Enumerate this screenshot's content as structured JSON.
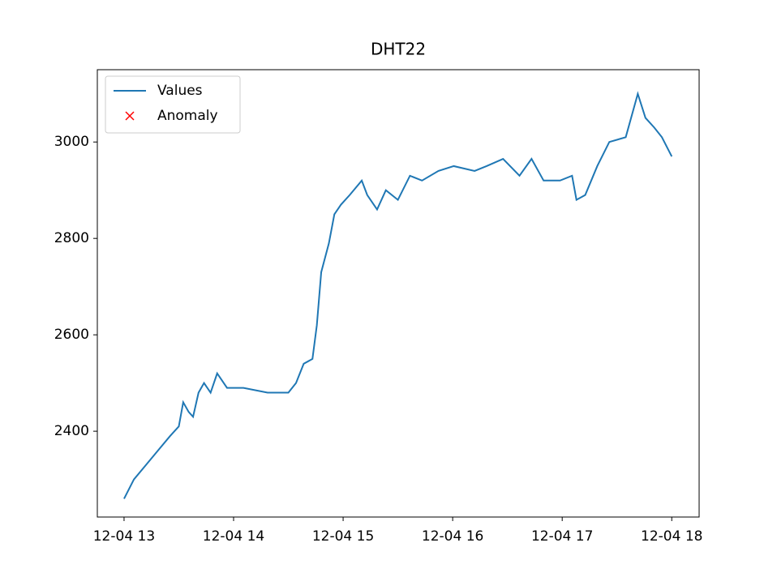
{
  "chart_data": {
    "type": "line",
    "title": "DHT22",
    "x": [
      13.0,
      13.09,
      13.2,
      13.31,
      13.42,
      13.5,
      13.54,
      13.59,
      13.63,
      13.68,
      13.73,
      13.79,
      13.85,
      13.94,
      14.09,
      14.31,
      14.5,
      14.57,
      14.64,
      14.72,
      14.76,
      14.8,
      14.87,
      14.92,
      14.98,
      15.06,
      15.17,
      15.22,
      15.31,
      15.39,
      15.5,
      15.61,
      15.72,
      15.87,
      16.01,
      16.2,
      16.31,
      16.46,
      16.61,
      16.72,
      16.83,
      16.98,
      17.09,
      17.13,
      17.21,
      17.32,
      17.43,
      17.58,
      17.69,
      17.76,
      17.84,
      17.91,
      18.0
    ],
    "series": [
      {
        "name": "Values",
        "color": "#1f77b4",
        "values": [
          2260,
          2300,
          2330,
          2360,
          2390,
          2410,
          2460,
          2440,
          2430,
          2480,
          2500,
          2480,
          2520,
          2490,
          2490,
          2480,
          2480,
          2500,
          2540,
          2550,
          2620,
          2730,
          2790,
          2850,
          2870,
          2890,
          2920,
          2890,
          2860,
          2900,
          2880,
          2930,
          2920,
          2940,
          2950,
          2940,
          2950,
          2965,
          2930,
          2965,
          2920,
          2920,
          2930,
          2880,
          2890,
          2950,
          3000,
          3010,
          3100,
          3050,
          3030,
          3010,
          2970
        ]
      }
    ],
    "anomaly": {
      "name": "Anomaly",
      "color": "#ff0000",
      "marker": "x",
      "x": [],
      "values": []
    },
    "xlim": [
      12.756,
      18.25
    ],
    "xticks": [
      {
        "value": 13,
        "label": "12-04 13"
      },
      {
        "value": 14,
        "label": "12-04 14"
      },
      {
        "value": 15,
        "label": "12-04 15"
      },
      {
        "value": 16,
        "label": "12-04 16"
      },
      {
        "value": 17,
        "label": "12-04 17"
      },
      {
        "value": 18,
        "label": "12-04 18"
      }
    ],
    "ylim": [
      2222,
      3150
    ],
    "yticks": [
      2400,
      2600,
      2800,
      3000
    ],
    "grid": false,
    "legend": "upper left"
  }
}
